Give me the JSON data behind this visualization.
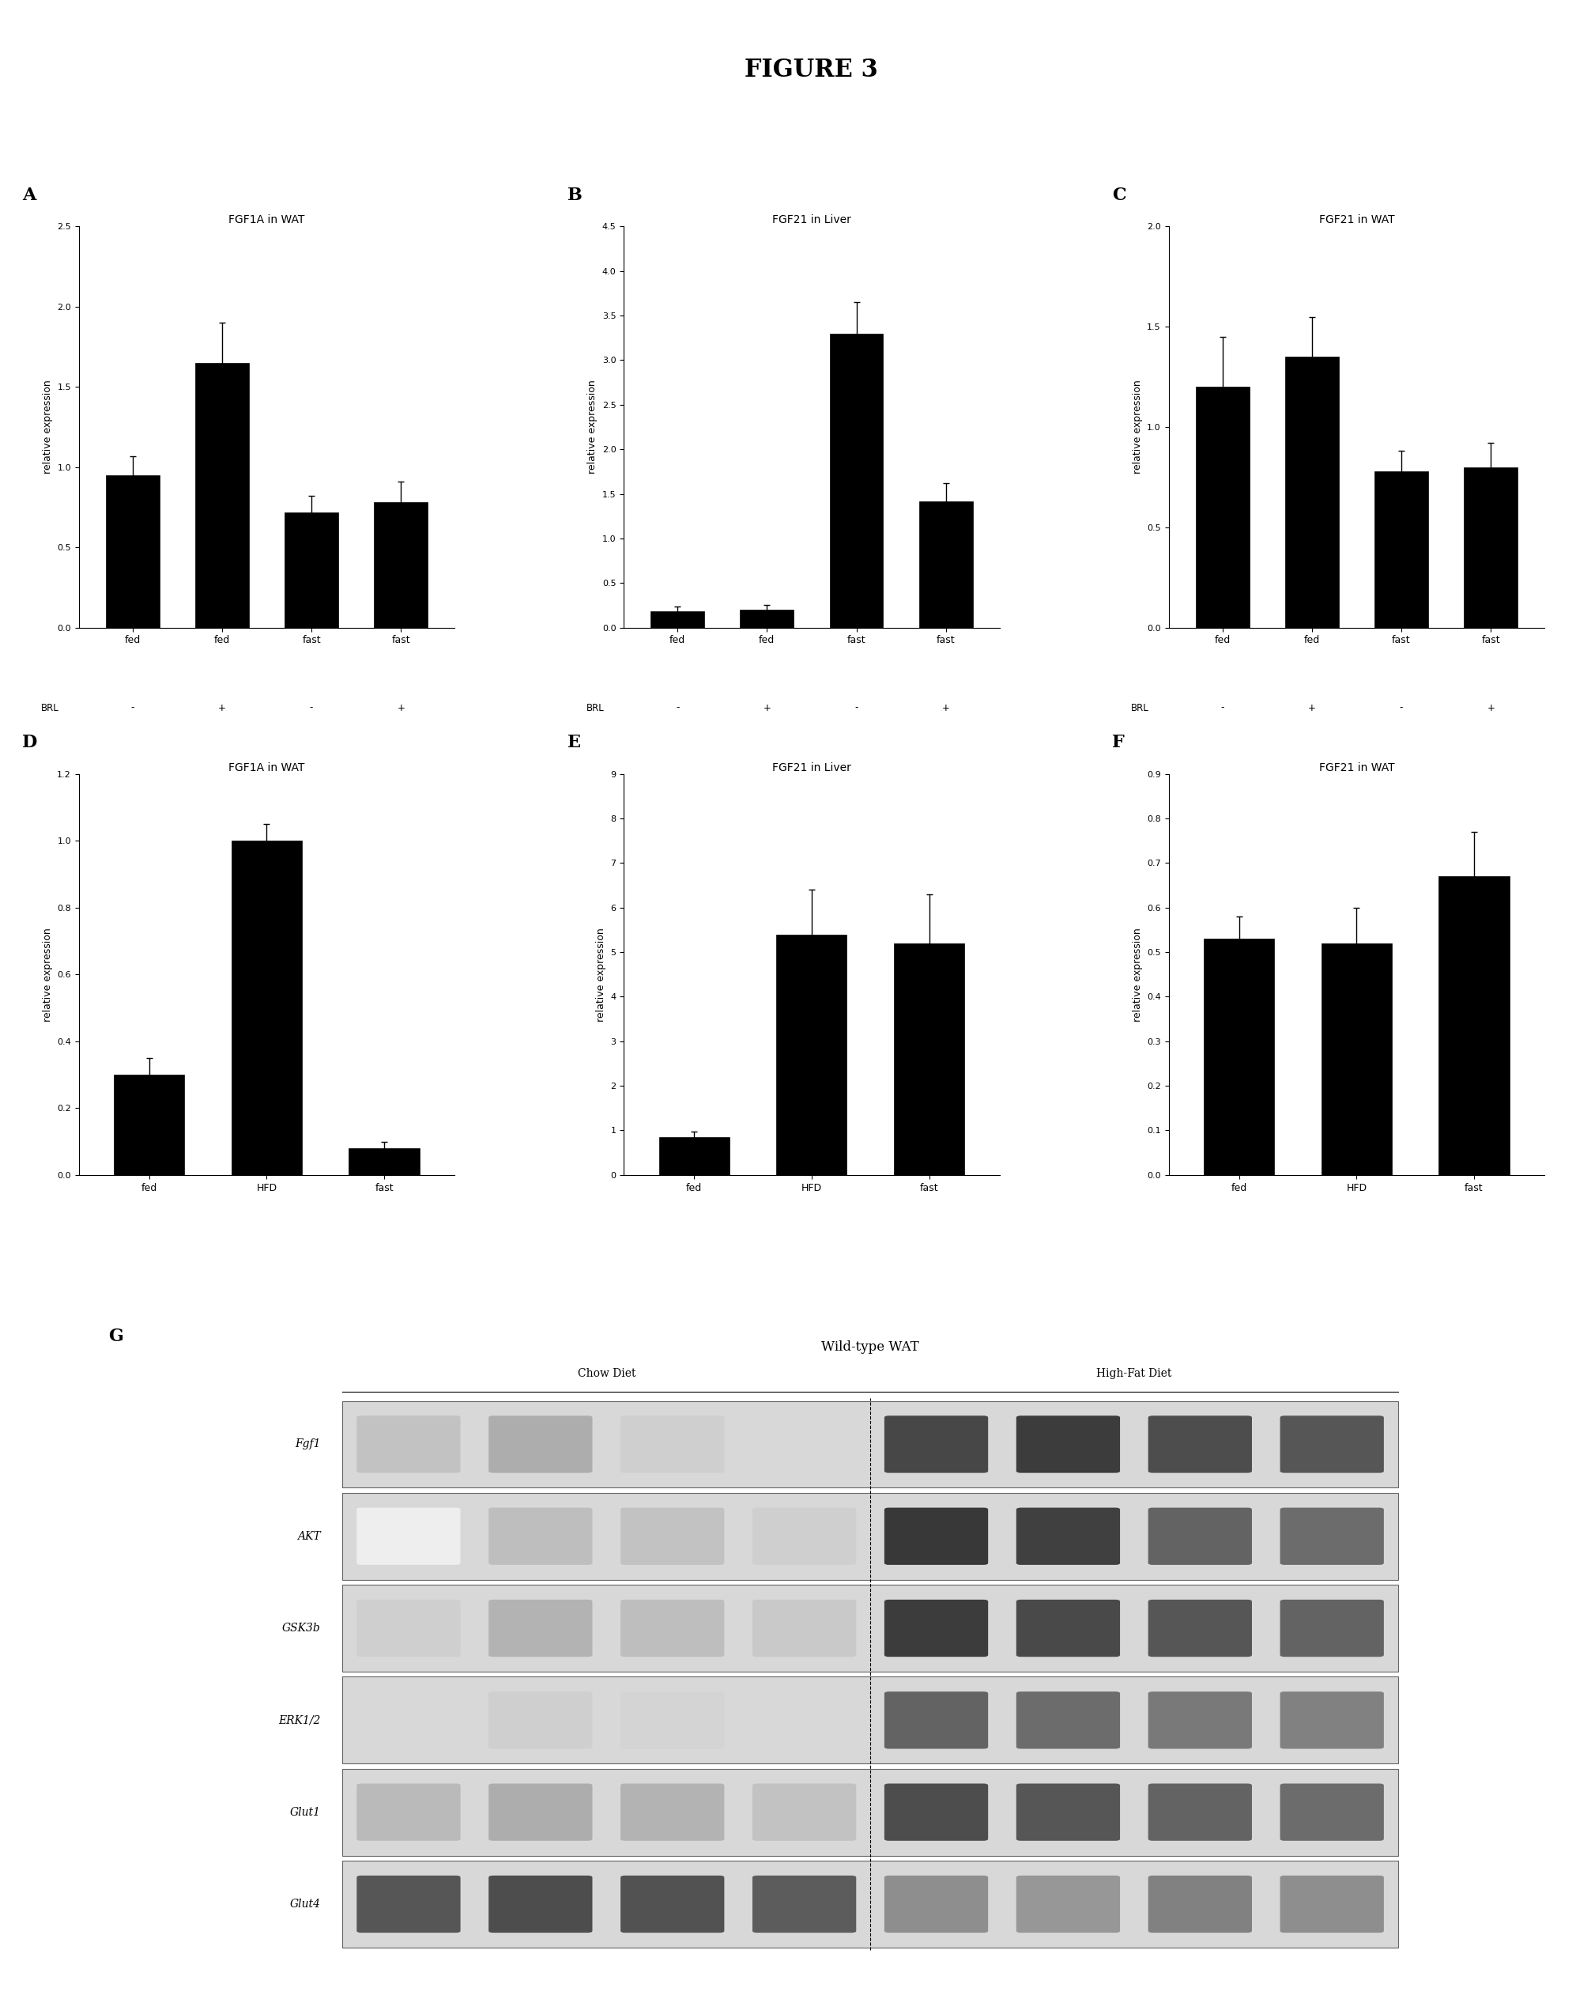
{
  "figure_title": "FIGURE 3",
  "panel_A": {
    "title": "FGF1A in WAT",
    "label": "A",
    "categories": [
      "fed",
      "fed",
      "fast",
      "fast"
    ],
    "brl_labels": [
      "-",
      "+",
      "-",
      "+"
    ],
    "values": [
      0.95,
      1.65,
      0.72,
      0.78
    ],
    "errors": [
      0.12,
      0.25,
      0.1,
      0.13
    ],
    "ylim": [
      0.0,
      2.5
    ],
    "yticks": [
      0.0,
      0.5,
      1.0,
      1.5,
      2.0,
      2.5
    ]
  },
  "panel_B": {
    "title": "FGF21 in Liver",
    "label": "B",
    "categories": [
      "fed",
      "fed",
      "fast",
      "fast"
    ],
    "brl_labels": [
      "-",
      "+",
      "-",
      "+"
    ],
    "values": [
      0.18,
      0.2,
      3.3,
      1.42
    ],
    "errors": [
      0.06,
      0.05,
      0.35,
      0.2
    ],
    "ylim": [
      0.0,
      4.5
    ],
    "yticks": [
      0.0,
      0.5,
      1.0,
      1.5,
      2.0,
      2.5,
      3.0,
      3.5,
      4.0,
      4.5
    ]
  },
  "panel_C": {
    "title": "FGF21 in WAT",
    "label": "C",
    "categories": [
      "fed",
      "fed",
      "fast",
      "fast"
    ],
    "brl_labels": [
      "-",
      "+",
      "-",
      "+"
    ],
    "values": [
      1.2,
      1.35,
      0.78,
      0.8
    ],
    "errors": [
      0.25,
      0.2,
      0.1,
      0.12
    ],
    "ylim": [
      0.0,
      2.0
    ],
    "yticks": [
      0.0,
      0.5,
      1.0,
      1.5,
      2.0
    ]
  },
  "panel_D": {
    "title": "FGF1A in WAT",
    "label": "D",
    "categories": [
      "fed",
      "HFD",
      "fast"
    ],
    "values": [
      0.3,
      1.0,
      0.08
    ],
    "errors": [
      0.05,
      0.05,
      0.02
    ],
    "ylim": [
      0.0,
      1.2
    ],
    "yticks": [
      0.0,
      0.2,
      0.4,
      0.6,
      0.8,
      1.0,
      1.2
    ]
  },
  "panel_E": {
    "title": "FGF21 in Liver",
    "label": "E",
    "categories": [
      "fed",
      "HFD",
      "fast"
    ],
    "values": [
      0.85,
      5.4,
      5.2
    ],
    "errors": [
      0.12,
      1.0,
      1.1
    ],
    "ylim": [
      0.0,
      9.0
    ],
    "yticks": [
      0.0,
      1.0,
      2.0,
      3.0,
      4.0,
      5.0,
      6.0,
      7.0,
      8.0,
      9.0
    ]
  },
  "panel_F": {
    "title": "FGF21 in WAT",
    "label": "F",
    "categories": [
      "fed",
      "HFD",
      "fast"
    ],
    "values": [
      0.53,
      0.52,
      0.67
    ],
    "errors": [
      0.05,
      0.08,
      0.1
    ],
    "ylim": [
      0.0,
      0.9
    ],
    "yticks": [
      0.0,
      0.1,
      0.2,
      0.3,
      0.4,
      0.5,
      0.6,
      0.7,
      0.8,
      0.9
    ]
  },
  "panel_G": {
    "label": "G",
    "title": "Wild-type WAT",
    "group1_label": "Chow Diet",
    "group2_label": "High-Fat Diet",
    "proteins": [
      "Fgf1",
      "AKT",
      "GSK3b",
      "ERK1/2",
      "Glut1",
      "Glut4"
    ],
    "n_lanes": 8,
    "n_chow": 4,
    "n_hfd": 4,
    "band_patterns": {
      "Fgf1": [
        0.28,
        0.38,
        0.22,
        0.18,
        0.85,
        0.9,
        0.82,
        0.78
      ],
      "AKT": [
        0.08,
        0.3,
        0.28,
        0.22,
        0.92,
        0.88,
        0.72,
        0.68
      ],
      "GSK3b": [
        0.22,
        0.35,
        0.3,
        0.25,
        0.9,
        0.84,
        0.78,
        0.72
      ],
      "ERK1/2": [
        0.18,
        0.22,
        0.2,
        0.18,
        0.72,
        0.68,
        0.62,
        0.58
      ],
      "Glut1": [
        0.32,
        0.38,
        0.35,
        0.28,
        0.82,
        0.78,
        0.72,
        0.68
      ],
      "Glut4": [
        0.78,
        0.82,
        0.8,
        0.75,
        0.52,
        0.48,
        0.58,
        0.52
      ]
    }
  },
  "bar_color": "#000000",
  "bg_color": "#ffffff",
  "ylabel": "relative expression"
}
